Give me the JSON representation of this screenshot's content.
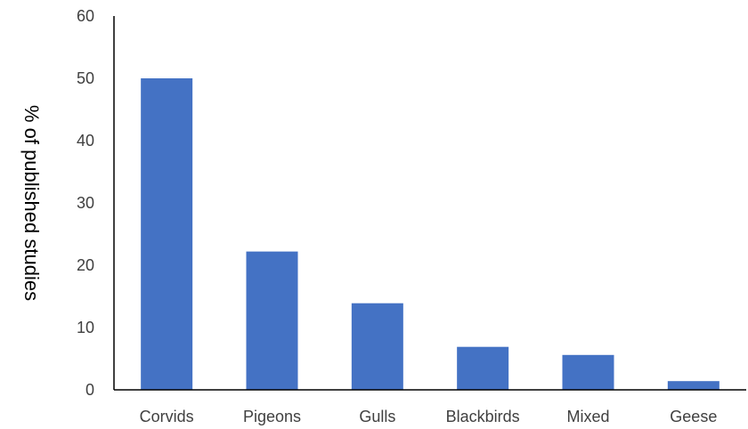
{
  "chart_data": {
    "type": "bar",
    "title": "",
    "xlabel": "",
    "ylabel": "% of published studies",
    "categories": [
      "Corvids",
      "Pigeons",
      "Gulls",
      "Blackbirds",
      "Mixed",
      "Geese"
    ],
    "values": [
      50,
      22.2,
      13.9,
      6.9,
      5.6,
      1.4
    ],
    "ylim": [
      0,
      60
    ],
    "yticks": [
      "0",
      "10",
      "20",
      "30",
      "40",
      "50",
      "60"
    ],
    "grid": false,
    "legend": "none",
    "bar_color": "#4472C4"
  }
}
